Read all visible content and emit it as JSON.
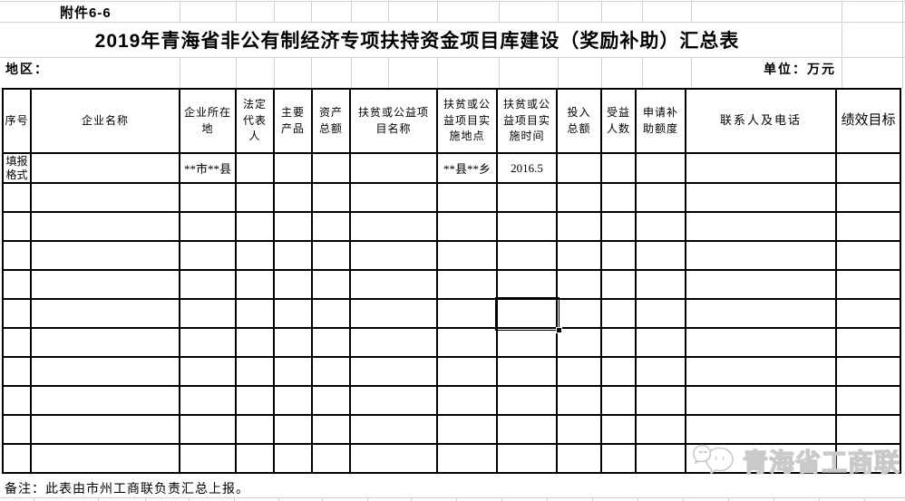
{
  "attachment_label": "附件6-6",
  "title": "2019年青海省非公有制经济专项扶持资金项目库建设（奖励补助）汇总表",
  "region_label": "地区：",
  "unit_label": "单位：万元",
  "note": "备注：此表由市州工商联负责汇总上报。",
  "watermark": {
    "text": "青海省工商联",
    "logo": "chat-bubbles-logo"
  },
  "table": {
    "columns": [
      "序号",
      "企业名称",
      "企业所在地",
      "法定代表人",
      "主要产品",
      "资产总额",
      "扶贫或公益项目名称",
      "扶贫或公益项目实施地点",
      "扶贫或公益项目实施时间",
      "投入总额",
      "受益人数",
      "申请补助额度",
      "联系人及电话",
      "绩效目标"
    ],
    "format_row": [
      "填报格式",
      "",
      "**市**县",
      "",
      "",
      "",
      "",
      "**县**乡",
      "2016.5",
      "",
      "",
      "",
      "",
      ""
    ],
    "empty_row_count": 10,
    "selection": {
      "empty_row_index": 4,
      "column": "扶贫或公益项目实施时间"
    }
  }
}
